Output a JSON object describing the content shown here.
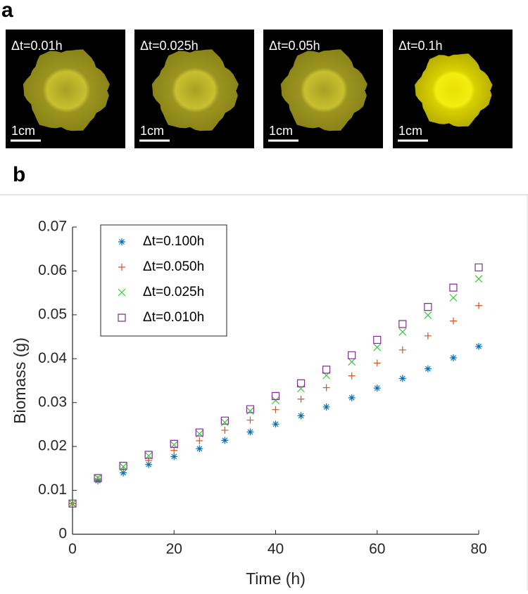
{
  "panel_labels": [
    "a",
    "b"
  ],
  "images": [
    {
      "label": "Δt=0.01h",
      "scale": "1cm"
    },
    {
      "label": "Δt=0.025h",
      "scale": "1cm"
    },
    {
      "label": "Δt=0.05h",
      "scale": "1cm"
    },
    {
      "label": "Δt=0.1h",
      "scale": "1cm"
    }
  ],
  "chart_data": {
    "type": "scatter",
    "x_label": "Time (h)",
    "y_label": "Biomass (g)",
    "x": [
      0,
      5,
      10,
      15,
      20,
      25,
      30,
      35,
      40,
      45,
      50,
      55,
      60,
      65,
      70,
      75,
      80
    ],
    "series": [
      {
        "name": "Δt=0.100h",
        "color": "#0072bd",
        "marker": "star",
        "values": [
          0.007,
          0.0122,
          0.014,
          0.0159,
          0.0177,
          0.0195,
          0.0214,
          0.0233,
          0.0251,
          0.027,
          0.029,
          0.0311,
          0.0333,
          0.0355,
          0.0377,
          0.0402,
          0.0428
        ]
      },
      {
        "name": "Δt=0.050h",
        "color": "#d95319",
        "marker": "plus",
        "values": [
          0.007,
          0.0125,
          0.0148,
          0.0168,
          0.0191,
          0.0213,
          0.0237,
          0.026,
          0.0284,
          0.0308,
          0.0334,
          0.0361,
          0.039,
          0.042,
          0.0452,
          0.0486,
          0.0521
        ]
      },
      {
        "name": "Δt=0.025h",
        "color": "#33cc33",
        "marker": "cross",
        "values": [
          0.007,
          0.0128,
          0.0154,
          0.0179,
          0.0204,
          0.0229,
          0.0255,
          0.0281,
          0.0305,
          0.0332,
          0.0362,
          0.0393,
          0.0426,
          0.0461,
          0.0499,
          0.0539,
          0.0582
        ]
      },
      {
        "name": "Δt=0.010h",
        "color": "#7e2f8e",
        "marker": "square",
        "values": [
          0.007,
          0.0128,
          0.0156,
          0.0181,
          0.0206,
          0.0232,
          0.0259,
          0.0285,
          0.0315,
          0.0344,
          0.0375,
          0.0408,
          0.0443,
          0.0479,
          0.0518,
          0.0562,
          0.0608
        ]
      }
    ],
    "xlim": [
      0,
      80
    ],
    "xticks": [
      0,
      20,
      40,
      60,
      80
    ],
    "ylim": [
      0,
      0.07
    ],
    "yticks": [
      0,
      0.01,
      0.02,
      0.03,
      0.04,
      0.05,
      0.06,
      0.07
    ],
    "legend": "upper-left"
  }
}
